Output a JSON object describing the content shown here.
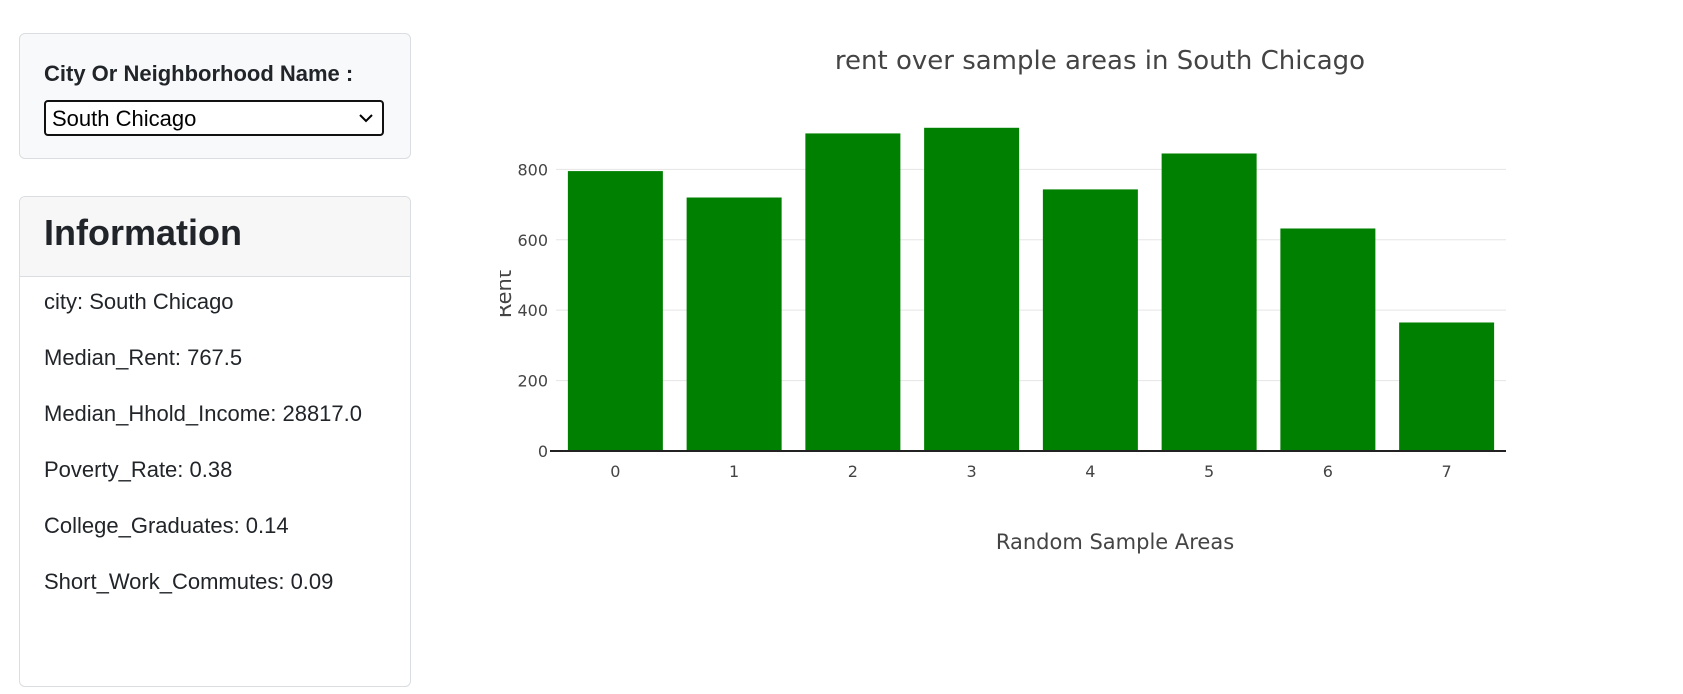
{
  "selector": {
    "label": "City Or Neighborhood Name :",
    "selected_value": "South Chicago"
  },
  "info": {
    "title": "Information",
    "lines": [
      "city: South Chicago",
      "Median_Rent: 767.5",
      "Median_Hhold_Income: 28817.0",
      "Poverty_Rate: 0.38",
      "College_Graduates: 0.14",
      "Short_Work_Commutes: 0.09"
    ]
  },
  "colors": {
    "bar": "#008000",
    "grid": "#e5e5e5",
    "axis": "#444444"
  },
  "chart_data": {
    "type": "bar",
    "title": "rent over sample areas in South Chicago",
    "xlabel": "Random Sample Areas",
    "ylabel": "Rent",
    "categories": [
      "0",
      "1",
      "2",
      "3",
      "4",
      "5",
      "6",
      "7"
    ],
    "values": [
      795,
      720,
      902,
      918,
      743,
      845,
      632,
      365
    ],
    "ylim": [
      0,
      960
    ],
    "yticks": [
      "0",
      "200",
      "400",
      "600",
      "800"
    ],
    "grid": true
  }
}
